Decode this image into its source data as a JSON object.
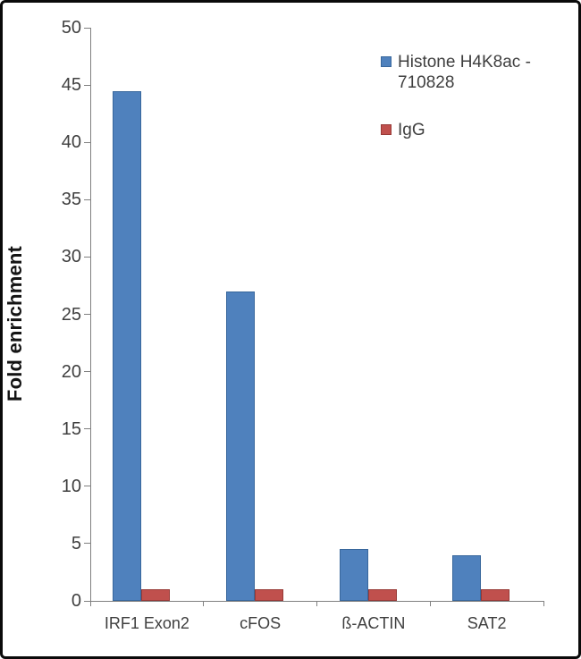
{
  "chart_data": {
    "type": "bar",
    "title": "",
    "categories": [
      "IRF1 Exon2",
      "cFOS",
      "ß-ACTIN",
      "SAT2"
    ],
    "series": [
      {
        "name": "Histone H4K8ac - 710828",
        "color": "#4F81BD",
        "border_color": "#38679C",
        "values": [
          44.5,
          27,
          4.5,
          4
        ]
      },
      {
        "name": "IgG",
        "color": "#C0504D",
        "border_color": "#97393674",
        "values": [
          1,
          1,
          1,
          1
        ]
      }
    ],
    "xlabel": "",
    "ylabel": "Fold enrichment",
    "ylim": [
      0,
      50
    ],
    "ytick_step": 5,
    "yticks": [
      "0",
      "5",
      "10",
      "15",
      "20",
      "25",
      "30",
      "35",
      "40",
      "45",
      "50"
    ],
    "grid": false,
    "legend_position": "upper right"
  }
}
